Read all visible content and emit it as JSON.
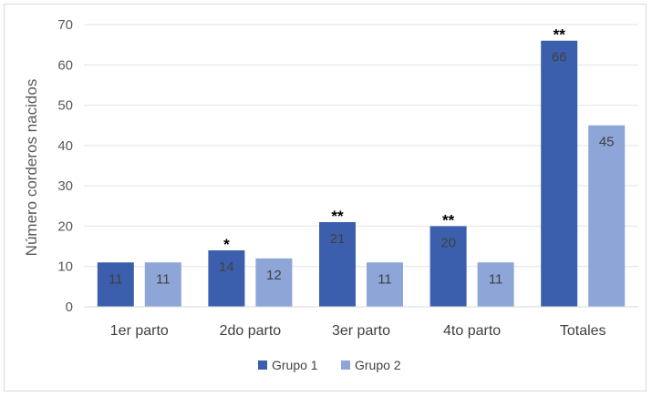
{
  "chart_data": {
    "type": "bar",
    "title": "",
    "xlabel": "",
    "ylabel": "Número corderos nacidos",
    "ylim": [
      0,
      70
    ],
    "yticks": [
      0,
      10,
      20,
      30,
      40,
      50,
      60,
      70
    ],
    "grid": true,
    "legend_position": "bottom",
    "categories": [
      "1er parto",
      "2do parto",
      "3er parto",
      "4to parto",
      "Totales"
    ],
    "series": [
      {
        "name": "Grupo 1",
        "color": "#3b5fad",
        "values": [
          11,
          14,
          21,
          20,
          66
        ],
        "data_labels": [
          "11",
          "14",
          "21",
          "20",
          "66"
        ]
      },
      {
        "name": "Grupo 2",
        "color": "#8ea5d8",
        "values": [
          11,
          12,
          11,
          11,
          45
        ],
        "data_labels": [
          "11",
          "12",
          "11",
          "11",
          "45"
        ]
      }
    ],
    "annotations": [
      "",
      "*",
      "**",
      "**",
      "**"
    ]
  }
}
